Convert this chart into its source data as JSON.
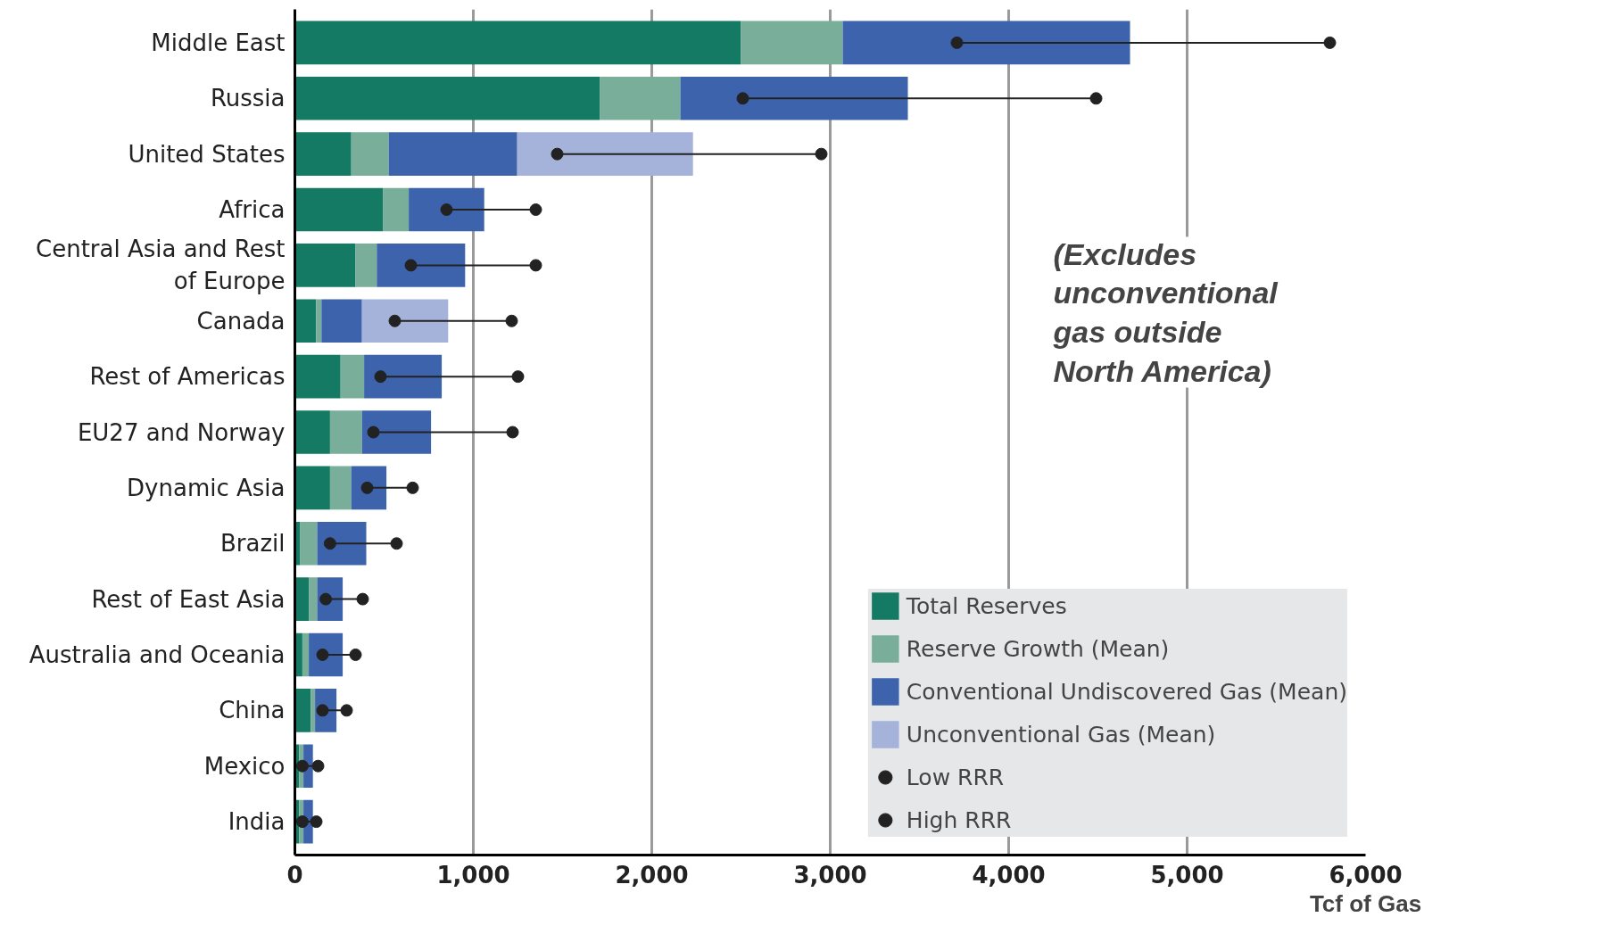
{
  "chart_data": {
    "type": "bar",
    "orientation": "horizontal",
    "stacked": true,
    "categories": [
      "Middle East",
      "Russia",
      "United States",
      "Africa",
      "Central Asia and Rest of Europe",
      "Canada",
      "Rest of Americas",
      "EU27 and Norway",
      "Dynamic Asia",
      "Brazil",
      "Rest of East Asia",
      "Australia and Oceania",
      "China",
      "Mexico",
      "India"
    ],
    "series": [
      {
        "name": "Total Reserves",
        "color": "#157a63",
        "values": [
          2500,
          1710,
          316,
          495,
          340,
          119,
          256,
          197,
          197,
          30,
          78,
          42,
          89,
          24,
          24
        ]
      },
      {
        "name": "Reserve Growth (Mean)",
        "color": "#79ae9b",
        "values": [
          570,
          450,
          210,
          143,
          119,
          30,
          132,
          179,
          119,
          95,
          47,
          36,
          24,
          24,
          24
        ]
      },
      {
        "name": "Conventional Undiscovered Gas (Mean)",
        "color": "#3d63ad",
        "values": [
          1610,
          1275,
          720,
          423,
          495,
          227,
          435,
          387,
          197,
          275,
          143,
          190,
          120,
          53,
          53
        ]
      },
      {
        "name": "Unconventional Gas (Mean)",
        "color": "#a5b3da",
        "values": [
          0,
          0,
          985,
          0,
          0,
          483,
          0,
          0,
          0,
          0,
          0,
          0,
          0,
          0,
          0
        ]
      },
      {
        "name": "Low RRR",
        "type": "scatter",
        "color": "#222222",
        "values": [
          3710,
          2510,
          1470,
          850,
          650,
          560,
          480,
          440,
          405,
          197,
          173,
          155,
          155,
          42,
          42
        ]
      },
      {
        "name": "High RRR",
        "type": "scatter",
        "color": "#222222",
        "values": [
          5800,
          4490,
          2950,
          1350,
          1350,
          1215,
          1250,
          1220,
          660,
          570,
          380,
          340,
          290,
          130,
          120
        ]
      }
    ],
    "xlim": [
      0,
      6000
    ],
    "xticks": [
      {
        "value": 0,
        "label": "0"
      },
      {
        "value": 1000,
        "label": "1,000"
      },
      {
        "value": 2000,
        "label": "2,000"
      },
      {
        "value": 3000,
        "label": "3,000"
      },
      {
        "value": 4000,
        "label": "4,000"
      },
      {
        "value": 5000,
        "label": "5,000"
      },
      {
        "value": 6000,
        "label": "6,000"
      }
    ],
    "xlabel": "Tcf of Gas",
    "grid": "x",
    "legend": "bottom right",
    "marker": "circle",
    "annotations": [
      "(Excludes unconventional gas outside North America)"
    ]
  }
}
